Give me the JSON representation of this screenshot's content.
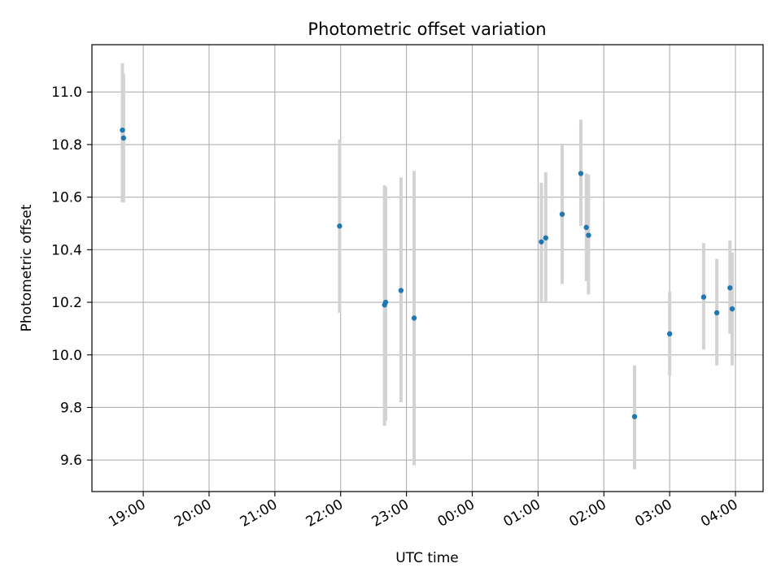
{
  "chart_data": {
    "type": "scatter",
    "title": "Photometric offset variation",
    "xlabel": "UTC time",
    "ylabel": "Photometric offset",
    "x_ticks": [
      "19:00",
      "20:00",
      "21:00",
      "22:00",
      "23:00",
      "00:00",
      "01:00",
      "02:00",
      "03:00",
      "04:00"
    ],
    "x_tick_hours": [
      19,
      20,
      21,
      22,
      23,
      24,
      25,
      26,
      27,
      28
    ],
    "xlim_hours": [
      18.22,
      28.42
    ],
    "y_ticks": [
      "9.6",
      "9.8",
      "10.0",
      "10.2",
      "10.4",
      "10.6",
      "10.8",
      "11.0"
    ],
    "y_tick_values": [
      9.6,
      9.8,
      10.0,
      10.2,
      10.4,
      10.6,
      10.8,
      11.0
    ],
    "ylim": [
      9.48,
      11.18
    ],
    "grid": true,
    "colors": {
      "points": "#1f77b4",
      "errorbars": "#d3d3d3",
      "grid": "#b0b0b0"
    },
    "points": [
      {
        "time": "18:41",
        "y": 10.855,
        "err_low": 10.58,
        "err_high": 11.11
      },
      {
        "time": "18:42",
        "y": 10.825,
        "err_low": 10.58,
        "err_high": 11.07
      },
      {
        "time": "21:59",
        "y": 10.49,
        "err_low": 10.16,
        "err_high": 10.82
      },
      {
        "time": "22:40",
        "y": 10.19,
        "err_low": 9.73,
        "err_high": 10.645
      },
      {
        "time": "22:41",
        "y": 10.2,
        "err_low": 9.75,
        "err_high": 10.64
      },
      {
        "time": "22:55",
        "y": 10.245,
        "err_low": 9.82,
        "err_high": 10.675
      },
      {
        "time": "23:07",
        "y": 10.14,
        "err_low": 9.58,
        "err_high": 10.7
      },
      {
        "time": "01:03",
        "y": 10.43,
        "err_low": 10.2,
        "err_high": 10.655
      },
      {
        "time": "01:07",
        "y": 10.445,
        "err_low": 10.2,
        "err_high": 10.695
      },
      {
        "time": "01:22",
        "y": 10.535,
        "err_low": 10.27,
        "err_high": 10.8
      },
      {
        "time": "01:39",
        "y": 10.69,
        "err_low": 10.49,
        "err_high": 10.895
      },
      {
        "time": "01:44",
        "y": 10.485,
        "err_low": 10.28,
        "err_high": 10.69
      },
      {
        "time": "01:46",
        "y": 10.455,
        "err_low": 10.23,
        "err_high": 10.685
      },
      {
        "time": "02:28",
        "y": 9.765,
        "err_low": 9.565,
        "err_high": 9.96
      },
      {
        "time": "03:00",
        "y": 10.08,
        "err_low": 9.92,
        "err_high": 10.24
      },
      {
        "time": "03:31",
        "y": 10.22,
        "err_low": 10.02,
        "err_high": 10.425
      },
      {
        "time": "03:43",
        "y": 10.16,
        "err_low": 9.96,
        "err_high": 10.365
      },
      {
        "time": "03:55",
        "y": 10.255,
        "err_low": 10.08,
        "err_high": 10.435
      },
      {
        "time": "03:57",
        "y": 10.175,
        "err_low": 9.96,
        "err_high": 10.39
      }
    ]
  }
}
